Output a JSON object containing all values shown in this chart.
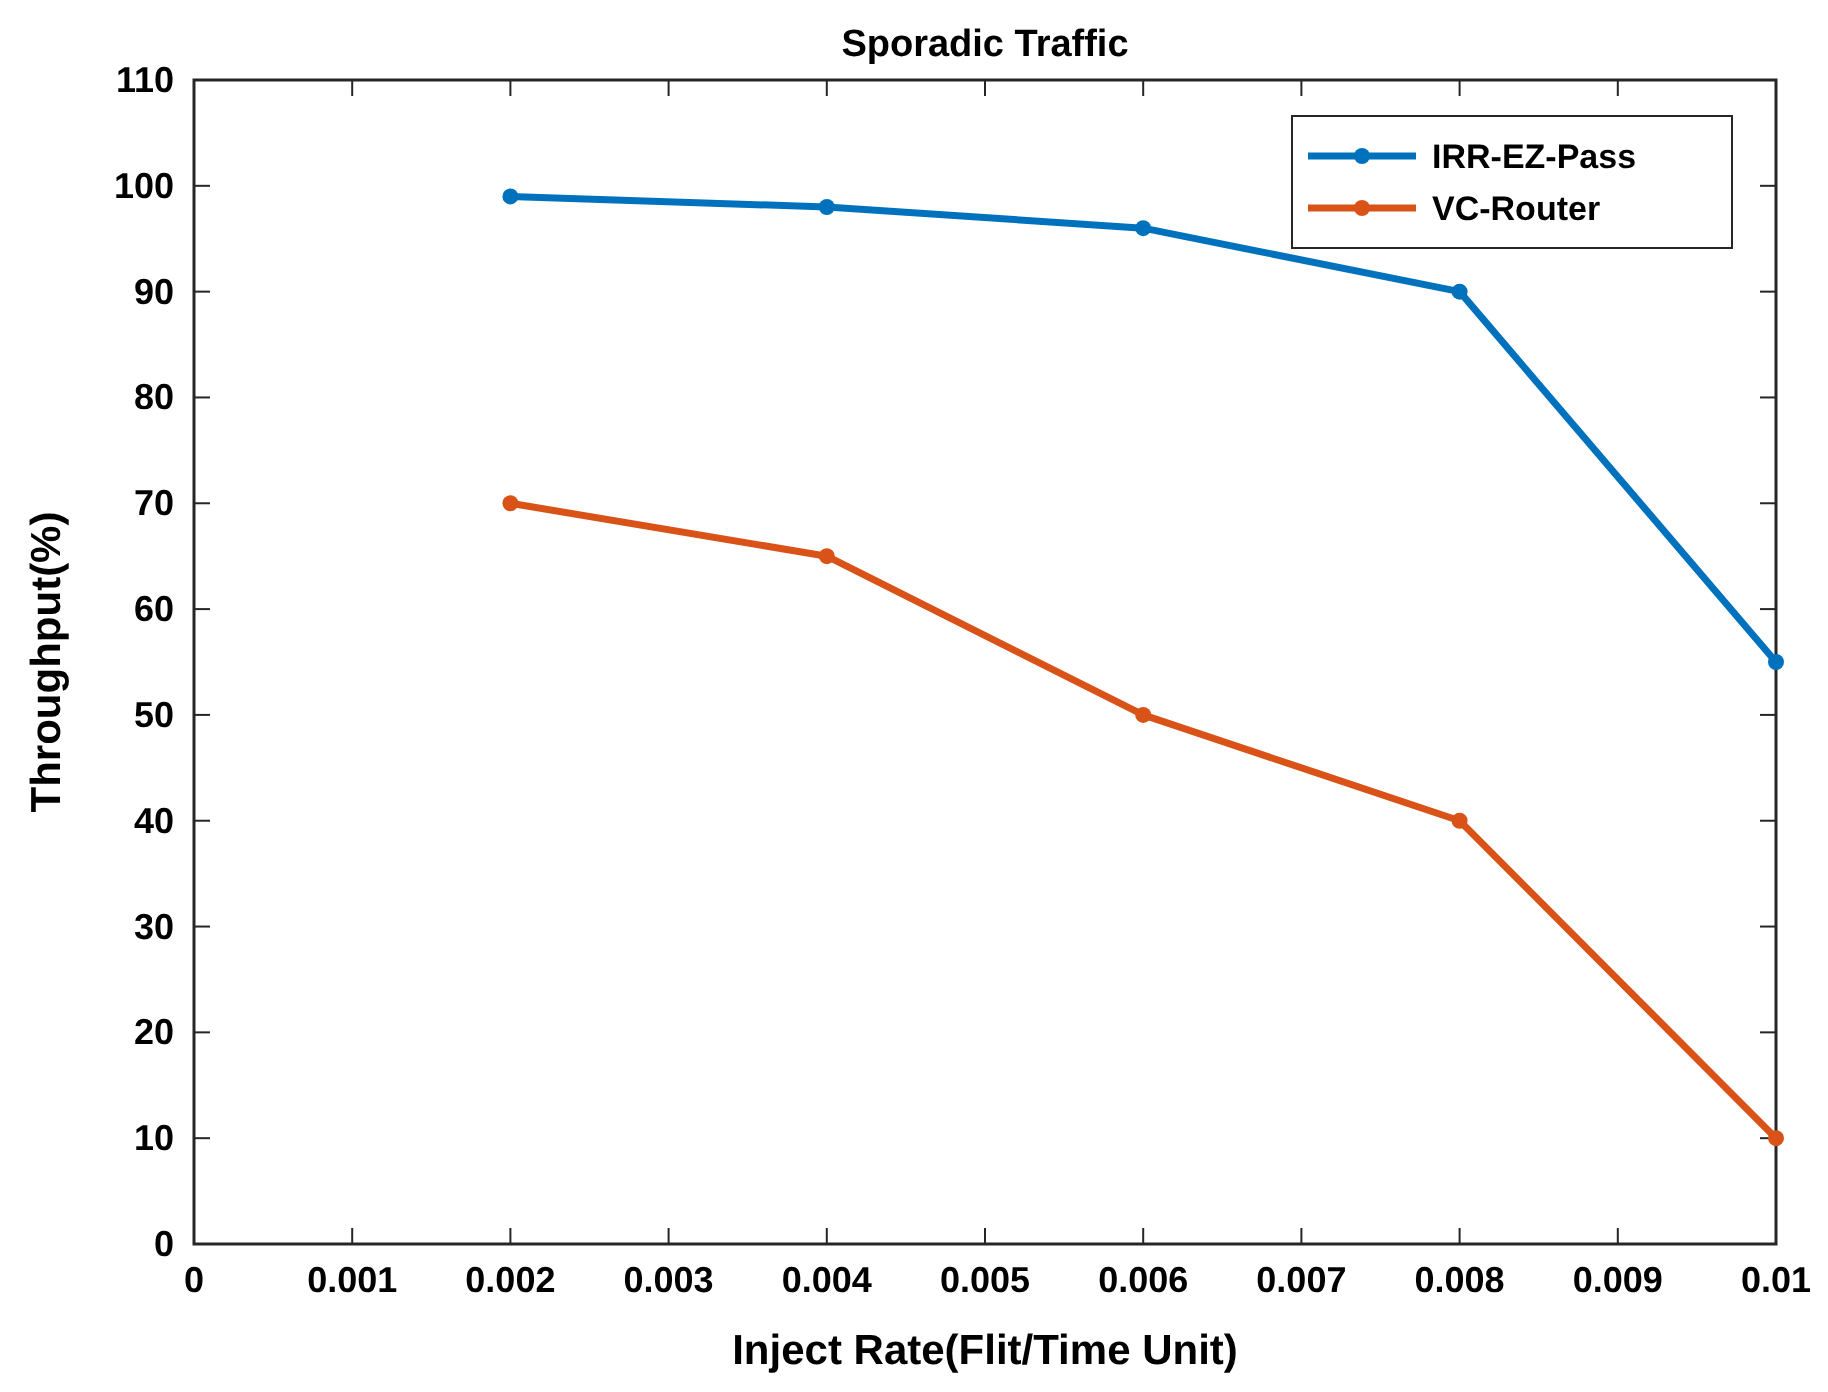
{
  "chart_data": {
    "type": "line",
    "title": "Sporadic Traffic",
    "xlabel": "Inject Rate(Flit/Time Unit)",
    "ylabel": "Throughput(%)",
    "x": [
      0.002,
      0.004,
      0.006,
      0.008,
      0.01
    ],
    "series": [
      {
        "name": "IRR-EZ-Pass",
        "color": "#0072bd",
        "values": [
          99,
          98,
          96,
          90,
          55
        ]
      },
      {
        "name": "VC-Router",
        "color": "#d95319",
        "values": [
          70,
          65,
          50,
          40,
          10
        ]
      }
    ],
    "xlim": [
      0,
      0.01
    ],
    "xticks": [
      0,
      0.001,
      0.002,
      0.003,
      0.004,
      0.005,
      0.006,
      0.007,
      0.008,
      0.009,
      0.01
    ],
    "ylim": [
      0,
      110
    ],
    "yticks": [
      0,
      10,
      20,
      30,
      40,
      50,
      60,
      70,
      80,
      90,
      100,
      110
    ],
    "grid": false,
    "legend": "top right",
    "marker": "circle",
    "line_style": "solid"
  }
}
